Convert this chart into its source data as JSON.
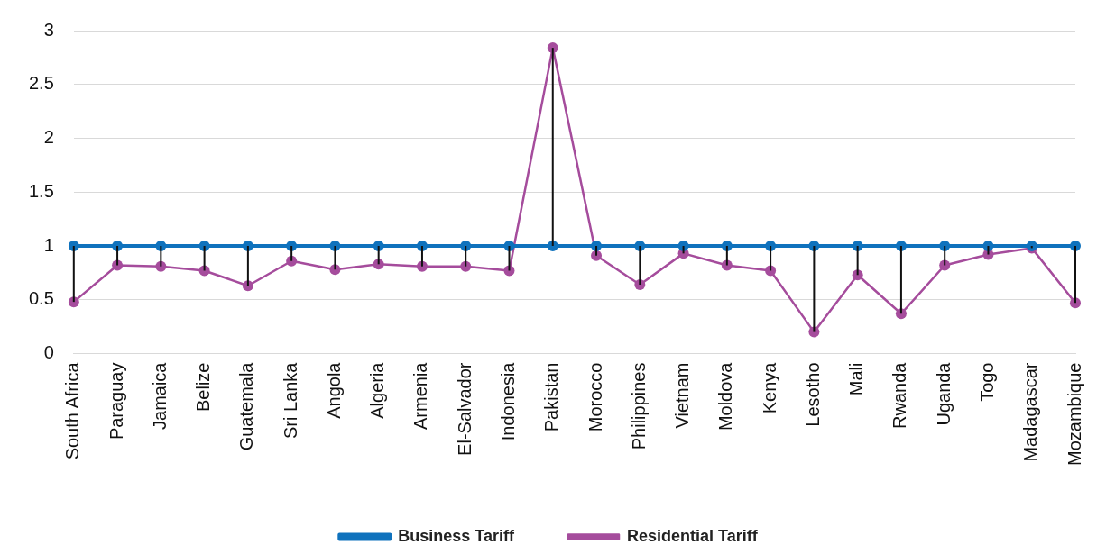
{
  "chart_data": {
    "type": "line",
    "categories": [
      "South Africa",
      "Paraguay",
      "Jamaica",
      "Belize",
      "Guatemala",
      "Sri Lanka",
      "Angola",
      "Algeria",
      "Armenia",
      "El-Salvador",
      "Indonesia",
      "Pakistan",
      "Morocco",
      "Philippines",
      "Vietnam",
      "Moldova",
      "Kenya",
      "Lesotho",
      "Mali",
      "Rwanda",
      "Uganda",
      "Togo",
      "Madagascar",
      "Mozambique"
    ],
    "series": [
      {
        "name": "Business Tariff",
        "color": "#0f72bd",
        "values": [
          1,
          1,
          1,
          1,
          1,
          1,
          1,
          1,
          1,
          1,
          1,
          1,
          1,
          1,
          1,
          1,
          1,
          1,
          1,
          1,
          1,
          1,
          1,
          1
        ],
        "errors": [
          [
            0.48,
            1
          ],
          [
            0.82,
            1
          ],
          [
            0.81,
            1
          ],
          [
            0.77,
            1
          ],
          [
            0.63,
            1
          ],
          [
            0.86,
            1
          ],
          [
            0.78,
            1
          ],
          [
            0.83,
            1
          ],
          [
            0.81,
            1
          ],
          [
            0.81,
            1
          ],
          [
            0.77,
            1
          ],
          [
            1,
            2.84
          ],
          [
            0.91,
            1
          ],
          [
            0.64,
            1
          ],
          [
            0.93,
            1
          ],
          [
            0.82,
            1
          ],
          [
            0.77,
            1
          ],
          [
            0.2,
            1
          ],
          [
            0.73,
            1
          ],
          [
            0.37,
            1
          ],
          [
            0.82,
            1
          ],
          [
            0.92,
            1
          ],
          [
            0.98,
            1
          ],
          [
            0.47,
            1
          ]
        ]
      },
      {
        "name": "Residential Tariff",
        "color": "#a54c9c",
        "values": [
          0.48,
          0.82,
          0.81,
          0.77,
          0.63,
          0.86,
          0.78,
          0.83,
          0.81,
          0.81,
          0.77,
          2.84,
          0.91,
          0.64,
          0.93,
          0.82,
          0.77,
          0.2,
          0.73,
          0.37,
          0.82,
          0.92,
          0.98,
          0.47
        ]
      }
    ],
    "ylim": [
      0,
      3
    ],
    "yticks": [
      0,
      0.5,
      1,
      1.5,
      2,
      2.5,
      3
    ],
    "grid": "y",
    "legend": "bottom",
    "marker": "circle",
    "line_style": "solid"
  }
}
